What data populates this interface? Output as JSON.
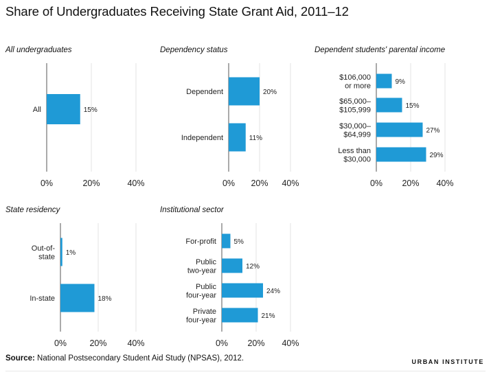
{
  "title": "Share of Undergraduates Receiving State Grant Aid, 2011–12",
  "source_label": "Source:",
  "source_text": "National Postsecondary Student Aid Study (NPSAS), 2012.",
  "brand": "URBAN INSTITUTE",
  "colors": {
    "bar": "#1f9ad6",
    "axis": "#555555",
    "grid": "#e3e3e3"
  },
  "chart_data": [
    {
      "type": "bar",
      "orientation": "horizontal",
      "title": "All undergraduates",
      "categories": [
        [
          "All"
        ]
      ],
      "values": [
        15
      ],
      "labels": [
        "15%"
      ],
      "xlim": [
        0,
        40
      ],
      "xticks": [
        "0%",
        "20%",
        "40%"
      ],
      "grid": true
    },
    {
      "type": "bar",
      "orientation": "horizontal",
      "title": "Dependency status",
      "categories": [
        [
          "Dependent"
        ],
        [
          "Independent"
        ]
      ],
      "values": [
        20,
        11
      ],
      "labels": [
        "20%",
        "11%"
      ],
      "xlim": [
        0,
        40
      ],
      "xticks": [
        "0%",
        "20%",
        "40%"
      ],
      "grid": true
    },
    {
      "type": "bar",
      "orientation": "horizontal",
      "title": "Dependent students' parental income",
      "categories": [
        [
          "$106,000",
          "or more"
        ],
        [
          "$65,000–",
          "$105,999"
        ],
        [
          "$30,000–",
          "$64,999"
        ],
        [
          "Less than",
          "$30,000"
        ]
      ],
      "values": [
        9,
        15,
        27,
        29
      ],
      "labels": [
        "9%",
        "15%",
        "27%",
        "29%"
      ],
      "xlim": [
        0,
        40
      ],
      "xticks": [
        "0%",
        "20%",
        "40%"
      ],
      "grid": true
    },
    {
      "type": "bar",
      "orientation": "horizontal",
      "title": "State residency",
      "categories": [
        [
          "Out-of-",
          "state"
        ],
        [
          "In-state"
        ]
      ],
      "values": [
        1,
        18
      ],
      "labels": [
        "1%",
        "18%"
      ],
      "xlim": [
        0,
        40
      ],
      "xticks": [
        "0%",
        "20%",
        "40%"
      ],
      "grid": true
    },
    {
      "type": "bar",
      "orientation": "horizontal",
      "title": "Institutional sector",
      "categories": [
        [
          "For-profit"
        ],
        [
          "Public",
          "two-year"
        ],
        [
          "Public",
          "four-year"
        ],
        [
          "Private",
          "four-year"
        ]
      ],
      "values": [
        5,
        12,
        24,
        21
      ],
      "labels": [
        "5%",
        "12%",
        "24%",
        "21%"
      ],
      "xlim": [
        0,
        40
      ],
      "xticks": [
        "0%",
        "20%",
        "40%"
      ],
      "grid": true
    }
  ]
}
